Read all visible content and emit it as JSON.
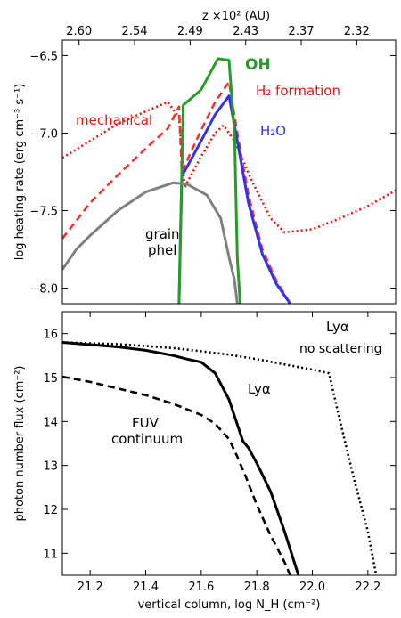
{
  "chart_data": [
    {
      "type": "line",
      "panel": "top",
      "xlim": [
        21.1,
        22.3
      ],
      "ylim": [
        -8.1,
        -6.4
      ],
      "y_ticks": [
        -8.0,
        -7.5,
        -7.0,
        -6.5
      ],
      "y_tick_labels": [
        "−8.0",
        "−7.5",
        "−7.0",
        "−6.5"
      ],
      "ylabel": "log heating rate (erg cm⁻³ s⁻¹)",
      "top_axis": {
        "label": "z ×10² (AU)",
        "ticks": [
          21.16,
          21.36,
          21.56,
          21.76,
          21.96,
          22.16
        ],
        "tick_labels": [
          "2.60",
          "2.54",
          "2.49",
          "2.43",
          "2.37",
          "2.32"
        ]
      },
      "series": [
        {
          "name": "mechanical",
          "color": "#ee1111",
          "style": "dotted",
          "x": [
            21.1,
            21.2,
            21.3,
            21.4,
            21.48,
            21.52,
            21.54,
            21.6,
            21.65,
            21.68,
            21.72,
            21.78,
            21.85,
            21.9,
            22.0,
            22.1,
            22.2,
            22.3
          ],
          "y": [
            -7.16,
            -7.05,
            -6.94,
            -6.86,
            -6.8,
            -6.9,
            -7.35,
            -7.15,
            -7.0,
            -6.95,
            -7.05,
            -7.3,
            -7.55,
            -7.64,
            -7.62,
            -7.55,
            -7.47,
            -7.37
          ]
        },
        {
          "name": "H₂ formation",
          "color": "#ee3333",
          "style": "dashed",
          "x": [
            21.1,
            21.2,
            21.3,
            21.4,
            21.48,
            21.52,
            21.53,
            21.6,
            21.65,
            21.7,
            21.73,
            21.77,
            21.82,
            21.87,
            21.92
          ],
          "y": [
            -7.68,
            -7.45,
            -7.27,
            -7.1,
            -6.97,
            -6.83,
            -7.25,
            -6.98,
            -6.8,
            -6.67,
            -7.0,
            -7.4,
            -7.75,
            -7.95,
            -8.1
          ]
        },
        {
          "name": "H₂O",
          "color": "#3333ee",
          "style": "solid",
          "x": [
            21.52,
            21.53,
            21.6,
            21.65,
            21.7,
            21.73,
            21.77,
            21.82,
            21.87,
            21.92
          ],
          "y": [
            -8.1,
            -7.28,
            -7.05,
            -6.88,
            -6.76,
            -7.05,
            -7.45,
            -7.78,
            -7.97,
            -8.1
          ]
        },
        {
          "name": "OH",
          "color": "#2a9a2a",
          "style": "solid",
          "x": [
            21.52,
            21.535,
            21.6,
            21.66,
            21.7,
            21.72,
            21.73,
            21.74
          ],
          "y": [
            -8.1,
            -6.82,
            -6.72,
            -6.52,
            -6.53,
            -7.0,
            -7.8,
            -8.1
          ]
        },
        {
          "name": "grain phel",
          "color": "#808080",
          "style": "solid",
          "x": [
            21.1,
            21.15,
            21.2,
            21.3,
            21.4,
            21.5,
            21.55,
            21.62,
            21.67,
            21.7,
            21.72,
            21.73
          ],
          "y": [
            -7.88,
            -7.75,
            -7.66,
            -7.5,
            -7.38,
            -7.32,
            -7.33,
            -7.4,
            -7.55,
            -7.8,
            -7.95,
            -8.1
          ]
        }
      ]
    },
    {
      "type": "line",
      "panel": "bottom",
      "xlim": [
        21.1,
        22.3
      ],
      "ylim": [
        10.5,
        16.5
      ],
      "x_ticks": [
        21.2,
        21.4,
        21.6,
        21.8,
        22.0,
        22.2
      ],
      "x_tick_labels": [
        "21.2",
        "21.4",
        "21.6",
        "21.8",
        "22.0",
        "22.2"
      ],
      "y_ticks": [
        11,
        12,
        13,
        14,
        15,
        16
      ],
      "y_tick_labels": [
        "11",
        "12",
        "13",
        "14",
        "15",
        "16"
      ],
      "xlabel": "vertical column, log N_H (cm⁻²)",
      "ylabel": "photon number flux (cm⁻²)",
      "series": [
        {
          "name": "Lyα no scattering",
          "color": "#000000",
          "style": "dotted",
          "x": [
            21.1,
            21.2,
            21.3,
            21.4,
            21.5,
            21.6,
            21.7,
            21.8,
            21.9,
            22.0,
            22.06,
            22.1,
            22.15,
            22.2,
            22.23
          ],
          "y": [
            15.8,
            15.78,
            15.76,
            15.72,
            15.67,
            15.6,
            15.52,
            15.42,
            15.3,
            15.18,
            15.1,
            14.0,
            12.7,
            11.5,
            10.5
          ]
        },
        {
          "name": "Lyα",
          "color": "#000000",
          "style": "solid",
          "x": [
            21.1,
            21.2,
            21.3,
            21.4,
            21.5,
            21.55,
            21.6,
            21.65,
            21.7,
            21.75,
            21.77,
            21.8,
            21.85,
            21.9,
            21.95
          ],
          "y": [
            15.8,
            15.75,
            15.7,
            15.62,
            15.5,
            15.42,
            15.35,
            15.1,
            14.5,
            13.55,
            13.4,
            13.05,
            12.4,
            11.5,
            10.5
          ]
        },
        {
          "name": "FUV continuum",
          "color": "#000000",
          "style": "dashed",
          "x": [
            21.1,
            21.2,
            21.3,
            21.4,
            21.5,
            21.6,
            21.65,
            21.7,
            21.73,
            21.76,
            21.8,
            21.85,
            21.9,
            21.92
          ],
          "y": [
            15.02,
            14.9,
            14.75,
            14.6,
            14.4,
            14.15,
            13.95,
            13.6,
            13.2,
            12.75,
            12.1,
            11.4,
            10.8,
            10.5
          ]
        }
      ]
    }
  ],
  "annotations": {
    "mechanical": "mechanical",
    "h2_formation": "H₂ formation",
    "oh": "OH",
    "h2o": "H₂O",
    "grain_line1": "grain",
    "grain_line2": "phel",
    "lya": "Lyα",
    "lya_ns_line1": "Lyα",
    "lya_ns_line2": "no scattering",
    "fuv_line1": "FUV",
    "fuv_line2": "continuum"
  }
}
